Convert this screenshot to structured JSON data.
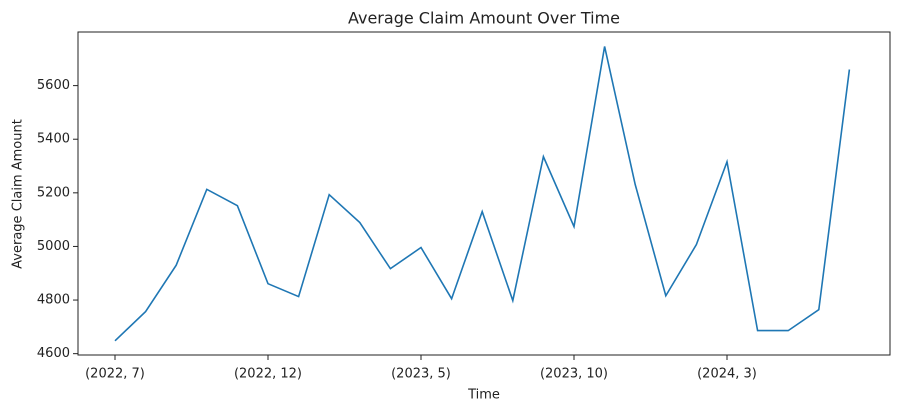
{
  "chart_data": {
    "type": "line",
    "title": "Average Claim Amount Over Time",
    "x_label": "Time",
    "y_label": "Average Claim Amount",
    "categories": [
      "(2022, 7)",
      null,
      null,
      null,
      null,
      "(2022, 12)",
      null,
      null,
      null,
      null,
      "(2023, 5)",
      null,
      null,
      null,
      null,
      "(2023, 10)",
      null,
      null,
      null,
      null,
      "(2024, 3)",
      null,
      null,
      null,
      null
    ],
    "series": [
      {
        "name": "Average Claim Amount",
        "color": "#1f77b4",
        "values": [
          4648,
          4757,
          4930,
          5213,
          5152,
          4861,
          4813,
          5193,
          5089,
          4917,
          4996,
          4805,
          5130,
          4798,
          5335,
          5074,
          5746,
          5231,
          4816,
          5007,
          5316,
          4686,
          4686,
          4764,
          5660
        ]
      }
    ],
    "ylim": [
      4595,
      5800
    ],
    "yticks": [
      4600,
      4800,
      5000,
      5200,
      5400,
      5600
    ],
    "grid": false
  }
}
